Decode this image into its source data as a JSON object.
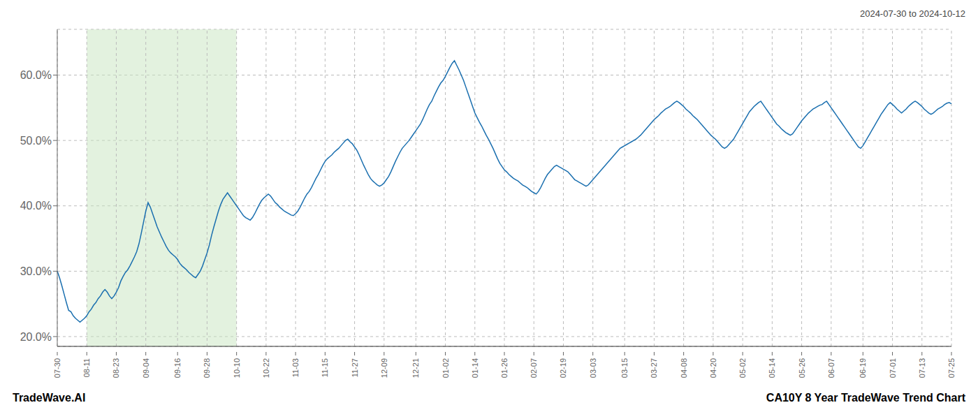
{
  "chart_data": {
    "type": "line",
    "subtitle": "2024-07-30 to 2024-10-12",
    "annotations": [
      "TradeWave.AI",
      "CA10Y 8 Year TradeWave Trend Chart"
    ],
    "color": "#1a6faf",
    "grid": true,
    "shaded_region": {
      "from": "08-11",
      "to": "10-10",
      "color": "#c8e6c0"
    },
    "ylim": [
      0.185,
      0.67
    ],
    "yticks": [
      {
        "value": 0.2,
        "label": "20.0%"
      },
      {
        "value": 0.3,
        "label": "30.0%"
      },
      {
        "value": 0.4,
        "label": "40.0%"
      },
      {
        "value": 0.5,
        "label": "50.0%"
      },
      {
        "value": 0.6,
        "label": "60.0%"
      }
    ],
    "categories": [
      "07-30",
      null,
      null,
      null,
      null,
      null,
      null,
      null,
      null,
      null,
      null,
      null,
      null,
      "08-11",
      null,
      null,
      null,
      null,
      null,
      null,
      null,
      null,
      null,
      null,
      null,
      null,
      "08-23",
      null,
      null,
      null,
      null,
      null,
      null,
      null,
      null,
      null,
      null,
      null,
      null,
      "09-04",
      null,
      null,
      null,
      null,
      null,
      null,
      null,
      null,
      null,
      null,
      null,
      null,
      null,
      "09-16",
      null,
      null,
      null,
      null,
      null,
      null,
      null,
      null,
      null,
      null,
      null,
      null,
      "09-28",
      null,
      null,
      null,
      null,
      null,
      null,
      null,
      null,
      null,
      null,
      null,
      null,
      "10-10",
      null,
      null,
      null,
      null,
      null,
      null,
      null,
      null,
      null,
      null,
      null,
      null,
      "10-22",
      null,
      null,
      null,
      null,
      null,
      null,
      null,
      null,
      null,
      null,
      null,
      null,
      "11-03",
      null,
      null,
      null,
      null,
      null,
      null,
      null,
      null,
      null,
      null,
      null,
      null,
      "11-15",
      null,
      null,
      null,
      null,
      null,
      null,
      null,
      null,
      null,
      null,
      null,
      null,
      "11-27",
      null,
      null,
      null,
      null,
      null,
      null,
      null,
      null,
      null,
      null,
      null,
      null,
      "12-09",
      null,
      null,
      null,
      null,
      null,
      null,
      null,
      null,
      null,
      null,
      null,
      null,
      null,
      "12-21",
      null,
      null,
      null,
      null,
      null,
      null,
      null,
      null,
      null,
      null,
      null,
      null,
      "01-02",
      null,
      null,
      null,
      null,
      null,
      null,
      null,
      null,
      null,
      null,
      null,
      null,
      "01-14",
      null,
      null,
      null,
      null,
      null,
      null,
      null,
      null,
      null,
      null,
      null,
      null,
      "01-26",
      null,
      null,
      null,
      null,
      null,
      null,
      null,
      null,
      null,
      null,
      null,
      null,
      "02-07",
      null,
      null,
      null,
      null,
      null,
      null,
      null,
      null,
      null,
      null,
      null,
      null,
      "02-19",
      null,
      null,
      null,
      null,
      null,
      null,
      null,
      null,
      null,
      null,
      null,
      null,
      "03-03",
      null,
      null,
      null,
      null,
      null,
      null,
      null,
      null,
      null,
      null,
      null,
      null,
      null,
      "03-15",
      null,
      null,
      null,
      null,
      null,
      null,
      null,
      null,
      null,
      null,
      null,
      null,
      "03-27",
      null,
      null,
      null,
      null,
      null,
      null,
      null,
      null,
      null,
      null,
      null,
      null,
      "04-08",
      null,
      null,
      null,
      null,
      null,
      null,
      null,
      null,
      null,
      null,
      null,
      null,
      "04-20",
      null,
      null,
      null,
      null,
      null,
      null,
      null,
      null,
      null,
      null,
      null,
      null,
      "05-02",
      null,
      null,
      null,
      null,
      null,
      null,
      null,
      null,
      null,
      null,
      null,
      null,
      "05-14",
      null,
      null,
      null,
      null,
      null,
      null,
      null,
      null,
      null,
      null,
      null,
      null,
      "05-26",
      null,
      null,
      null,
      null,
      null,
      null,
      null,
      null,
      null,
      null,
      null,
      null,
      "06-07",
      null,
      null,
      null,
      null,
      null,
      null,
      null,
      null,
      null,
      null,
      null,
      null,
      null,
      "06-19",
      null,
      null,
      null,
      null,
      null,
      null,
      null,
      null,
      null,
      null,
      null,
      null,
      "07-01",
      null,
      null,
      null,
      null,
      null,
      null,
      null,
      null,
      null,
      null,
      null,
      null,
      "07-13",
      null,
      null,
      null,
      null,
      null,
      null,
      null,
      null,
      null,
      null,
      null,
      null,
      "07-25"
    ],
    "values": [
      0.3,
      0.29,
      0.278,
      0.265,
      0.252,
      0.24,
      0.238,
      0.232,
      0.228,
      0.225,
      0.222,
      0.225,
      0.228,
      0.232,
      0.238,
      0.242,
      0.248,
      0.252,
      0.258,
      0.262,
      0.268,
      0.272,
      0.268,
      0.262,
      0.258,
      0.262,
      0.268,
      0.275,
      0.285,
      0.292,
      0.298,
      0.302,
      0.308,
      0.315,
      0.322,
      0.33,
      0.342,
      0.358,
      0.375,
      0.392,
      0.405,
      0.398,
      0.388,
      0.378,
      0.368,
      0.36,
      0.352,
      0.345,
      0.338,
      0.332,
      0.328,
      0.325,
      0.322,
      0.318,
      0.312,
      0.308,
      0.305,
      0.302,
      0.298,
      0.295,
      0.292,
      0.29,
      0.295,
      0.3,
      0.308,
      0.318,
      0.328,
      0.34,
      0.355,
      0.368,
      0.38,
      0.392,
      0.402,
      0.41,
      0.415,
      0.42,
      0.415,
      0.41,
      0.405,
      0.4,
      0.395,
      0.39,
      0.385,
      0.382,
      0.38,
      0.378,
      0.382,
      0.388,
      0.395,
      0.402,
      0.408,
      0.412,
      0.415,
      0.418,
      0.415,
      0.41,
      0.405,
      0.402,
      0.398,
      0.395,
      0.392,
      0.39,
      0.388,
      0.386,
      0.385,
      0.388,
      0.392,
      0.398,
      0.405,
      0.412,
      0.418,
      0.422,
      0.428,
      0.435,
      0.442,
      0.448,
      0.455,
      0.462,
      0.468,
      0.472,
      0.475,
      0.478,
      0.482,
      0.485,
      0.488,
      0.492,
      0.496,
      0.5,
      0.502,
      0.498,
      0.495,
      0.49,
      0.485,
      0.478,
      0.47,
      0.462,
      0.455,
      0.448,
      0.442,
      0.438,
      0.435,
      0.432,
      0.43,
      0.432,
      0.435,
      0.44,
      0.445,
      0.452,
      0.46,
      0.468,
      0.475,
      0.482,
      0.488,
      0.492,
      0.496,
      0.5,
      0.505,
      0.51,
      0.515,
      0.52,
      0.525,
      0.532,
      0.54,
      0.548,
      0.555,
      0.56,
      0.568,
      0.575,
      0.582,
      0.588,
      0.592,
      0.598,
      0.605,
      0.612,
      0.618,
      0.622,
      0.615,
      0.608,
      0.6,
      0.592,
      0.582,
      0.572,
      0.562,
      0.552,
      0.542,
      0.535,
      0.528,
      0.522,
      0.515,
      0.508,
      0.502,
      0.495,
      0.488,
      0.48,
      0.472,
      0.465,
      0.46,
      0.455,
      0.452,
      0.448,
      0.445,
      0.442,
      0.44,
      0.438,
      0.435,
      0.432,
      0.43,
      0.428,
      0.425,
      0.422,
      0.42,
      0.418,
      0.422,
      0.428,
      0.435,
      0.442,
      0.448,
      0.452,
      0.456,
      0.46,
      0.462,
      0.46,
      0.458,
      0.456,
      0.454,
      0.452,
      0.448,
      0.444,
      0.44,
      0.438,
      0.436,
      0.434,
      0.432,
      0.43,
      0.432,
      0.436,
      0.44,
      0.444,
      0.448,
      0.452,
      0.456,
      0.46,
      0.464,
      0.468,
      0.472,
      0.476,
      0.48,
      0.484,
      0.488,
      0.49,
      0.492,
      0.494,
      0.496,
      0.498,
      0.5,
      0.502,
      0.505,
      0.508,
      0.512,
      0.516,
      0.52,
      0.524,
      0.528,
      0.532,
      0.535,
      0.538,
      0.542,
      0.545,
      0.548,
      0.55,
      0.552,
      0.555,
      0.558,
      0.56,
      0.558,
      0.555,
      0.552,
      0.548,
      0.545,
      0.542,
      0.538,
      0.535,
      0.532,
      0.528,
      0.524,
      0.52,
      0.516,
      0.512,
      0.508,
      0.505,
      0.502,
      0.498,
      0.494,
      0.49,
      0.488,
      0.49,
      0.494,
      0.498,
      0.502,
      0.508,
      0.514,
      0.52,
      0.526,
      0.532,
      0.538,
      0.544,
      0.548,
      0.552,
      0.555,
      0.558,
      0.56,
      0.555,
      0.55,
      0.545,
      0.54,
      0.535,
      0.53,
      0.525,
      0.522,
      0.518,
      0.515,
      0.512,
      0.51,
      0.508,
      0.51,
      0.515,
      0.52,
      0.525,
      0.53,
      0.534,
      0.538,
      0.542,
      0.545,
      0.548,
      0.55,
      0.552,
      0.554,
      0.555,
      0.558,
      0.56,
      0.555,
      0.55,
      0.545,
      0.54,
      0.535,
      0.53,
      0.525,
      0.52,
      0.515,
      0.51,
      0.505,
      0.5,
      0.495,
      0.49,
      0.488,
      0.492,
      0.498,
      0.504,
      0.51,
      0.516,
      0.522,
      0.528,
      0.534,
      0.54,
      0.545,
      0.55,
      0.555,
      0.558,
      0.555,
      0.552,
      0.548,
      0.545,
      0.542,
      0.545,
      0.548,
      0.552,
      0.555,
      0.558,
      0.56,
      0.558,
      0.555,
      0.552,
      0.548,
      0.545,
      0.542,
      0.54,
      0.542,
      0.545,
      0.548,
      0.55,
      0.552,
      0.555,
      0.557,
      0.558,
      0.556
    ]
  }
}
